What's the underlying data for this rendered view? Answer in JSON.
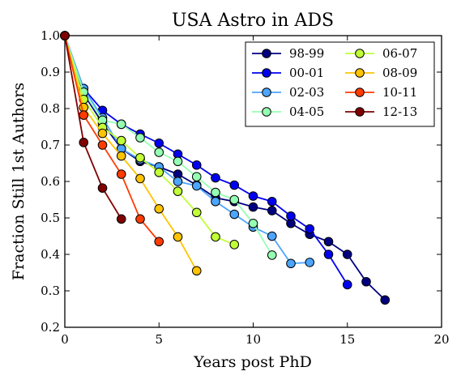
{
  "chart_data": {
    "type": "line",
    "title": "USA Astro in ADS",
    "xlabel": "Years post PhD",
    "ylabel": "Fraction Still 1st Authors",
    "xlim": [
      0,
      20
    ],
    "ylim": [
      0.2,
      1.0
    ],
    "xticks": [
      "0",
      "5",
      "10",
      "15",
      "20"
    ],
    "yticks": [
      "0.2",
      "0.3",
      "0.4",
      "0.5",
      "0.6",
      "0.7",
      "0.8",
      "0.9",
      "1.0"
    ],
    "grid": false,
    "legend_position": "top-right",
    "series": [
      {
        "name": "98-99",
        "color": "#000080",
        "x": [
          0,
          1,
          2,
          3,
          4,
          5,
          6,
          7,
          8,
          9,
          10,
          11,
          12,
          13,
          14,
          15,
          16,
          17
        ],
        "y": [
          1.0,
          0.84,
          0.76,
          0.69,
          0.655,
          0.64,
          0.62,
          0.59,
          0.555,
          0.545,
          0.53,
          0.52,
          0.485,
          0.455,
          0.435,
          0.4,
          0.325,
          0.275
        ]
      },
      {
        "name": "00-01",
        "color": "#0000f1",
        "x": [
          0,
          1,
          2,
          3,
          4,
          5,
          6,
          7,
          8,
          9,
          10,
          11,
          12,
          13,
          14,
          15
        ],
        "y": [
          1.0,
          0.855,
          0.795,
          0.757,
          0.73,
          0.705,
          0.675,
          0.645,
          0.61,
          0.59,
          0.56,
          0.545,
          0.505,
          0.47,
          0.4,
          0.317
        ]
      },
      {
        "name": "02-03",
        "color": "#4ca5ff",
        "x": [
          0,
          1,
          2,
          3,
          4,
          5,
          6,
          7,
          8,
          9,
          10,
          11,
          12,
          13
        ],
        "y": [
          1.0,
          0.855,
          0.775,
          0.69,
          0.66,
          0.64,
          0.6,
          0.588,
          0.545,
          0.51,
          0.475,
          0.45,
          0.375,
          0.378
        ]
      },
      {
        "name": "04-05",
        "color": "#94ffb2",
        "x": [
          0,
          1,
          2,
          3,
          4,
          5,
          6,
          7,
          8,
          9,
          10,
          11
        ],
        "y": [
          1.0,
          0.845,
          0.768,
          0.757,
          0.72,
          0.68,
          0.655,
          0.613,
          0.57,
          0.55,
          0.485,
          0.398
        ]
      },
      {
        "name": "06-07",
        "color": "#c1ff37",
        "x": [
          0,
          1,
          2,
          3,
          4,
          5,
          6,
          7,
          8,
          9
        ],
        "y": [
          1.0,
          0.825,
          0.748,
          0.712,
          0.665,
          0.625,
          0.573,
          0.515,
          0.448,
          0.427
        ]
      },
      {
        "name": "08-09",
        "color": "#ffc400",
        "x": [
          0,
          1,
          2,
          3,
          4,
          5,
          6,
          7
        ],
        "y": [
          1.0,
          0.803,
          0.732,
          0.67,
          0.608,
          0.525,
          0.448,
          0.355
        ]
      },
      {
        "name": "10-11",
        "color": "#ff3b00",
        "x": [
          0,
          1,
          2,
          3,
          4,
          5
        ],
        "y": [
          1.0,
          0.782,
          0.7,
          0.62,
          0.497,
          0.435
        ]
      },
      {
        "name": "12-13",
        "color": "#800000",
        "x": [
          0,
          1,
          2,
          3
        ],
        "y": [
          1.0,
          0.707,
          0.582,
          0.497
        ]
      }
    ]
  }
}
